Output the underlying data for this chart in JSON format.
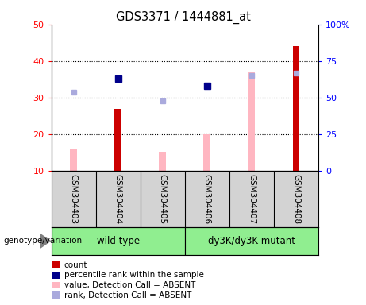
{
  "title": "GDS3371 / 1444881_at",
  "samples": [
    "GSM304403",
    "GSM304404",
    "GSM304405",
    "GSM304406",
    "GSM304407",
    "GSM304408"
  ],
  "bar_absent_values": [
    16,
    0,
    15,
    20,
    37,
    0
  ],
  "bar_count_values": [
    0,
    27,
    0,
    0,
    0,
    44
  ],
  "rank_absent_values": [
    54,
    0,
    48,
    0,
    65,
    67
  ],
  "percentile_rank_values": [
    0,
    63,
    0,
    58,
    0,
    0
  ],
  "ylim_left": [
    10,
    50
  ],
  "ylim_right": [
    0,
    100
  ],
  "yticks_left": [
    10,
    20,
    30,
    40,
    50
  ],
  "yticks_right": [
    0,
    25,
    50,
    75,
    100
  ],
  "ytick_labels_left": [
    "10",
    "20",
    "30",
    "40",
    "50"
  ],
  "ytick_labels_right": [
    "0",
    "25",
    "50",
    "75",
    "100%"
  ],
  "color_count": "#CC0000",
  "color_percentile": "#00008B",
  "color_absent_value": "#FFB6C1",
  "color_absent_rank": "#AAAADD",
  "bar_width": 0.35,
  "plot_bg": "white",
  "sample_area_bg": "#D3D3D3",
  "group_area_bg": "#90EE90",
  "wt_label": "wild type",
  "mut_label": "dy3K/dy3K mutant",
  "geno_label": "genotype/variation",
  "legend_items": [
    [
      "#CC0000",
      "count"
    ],
    [
      "#00008B",
      "percentile rank within the sample"
    ],
    [
      "#FFB6C1",
      "value, Detection Call = ABSENT"
    ],
    [
      "#AAAADD",
      "rank, Detection Call = ABSENT"
    ]
  ]
}
